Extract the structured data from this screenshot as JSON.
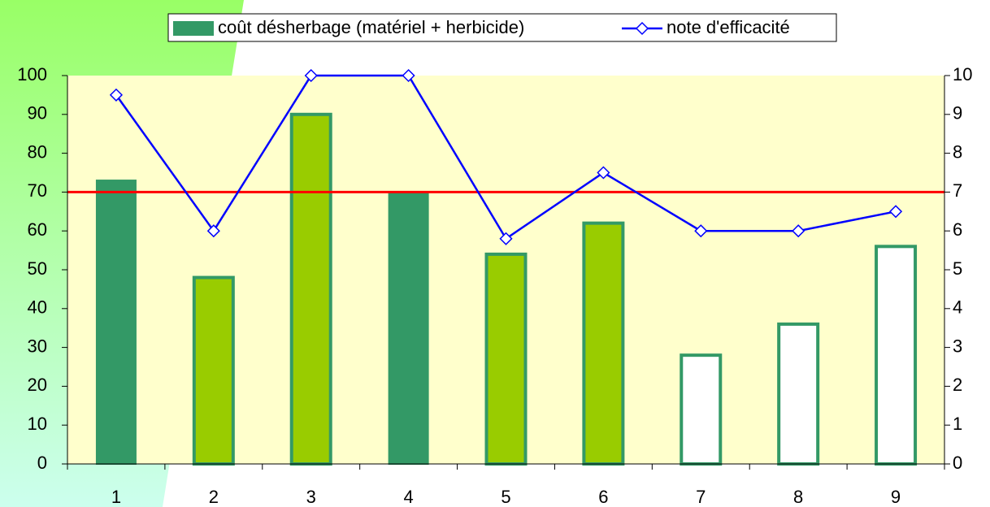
{
  "chart_data": {
    "type": "bar_line",
    "categories": [
      "1",
      "2",
      "3",
      "4",
      "5",
      "6",
      "7",
      "8",
      "9"
    ],
    "series": [
      {
        "name": "coût désherbage (matériel + herbicide)",
        "type": "bar",
        "color": "#339966",
        "colors": [
          "#339966",
          "#99cc00",
          "#99cc00",
          "#339966",
          "#99cc00",
          "#99cc00",
          "#ffffff",
          "#ffffff",
          "#ffffff"
        ],
        "edgecolor": "#339966",
        "values": [
          73,
          48,
          90,
          70,
          54,
          62,
          28,
          36,
          56
        ]
      },
      {
        "name": "note d'efficacité",
        "type": "line",
        "axis": "y2",
        "color": "#0000ff",
        "marker": "diamond",
        "values": [
          9.5,
          6,
          10,
          10,
          5.8,
          7.5,
          6,
          6,
          6.5
        ]
      }
    ],
    "reference_line": {
      "value": 70,
      "color": "#ff0000"
    },
    "ylim": [
      0,
      100
    ],
    "yticks": [
      0,
      10,
      20,
      30,
      40,
      50,
      60,
      70,
      80,
      90,
      100
    ],
    "y2lim": [
      0,
      10
    ],
    "y2ticks": [
      0,
      1,
      2,
      3,
      4,
      5,
      6,
      7,
      8,
      9,
      10
    ],
    "plot_background": "#ffffcc",
    "legend": "top"
  }
}
